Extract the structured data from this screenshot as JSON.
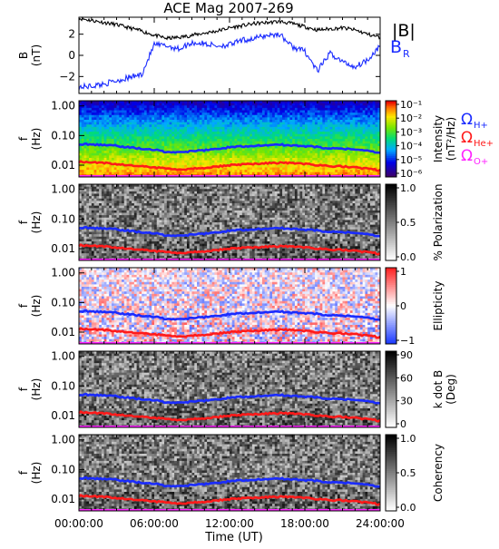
{
  "title": "ACE Mag 2007-269",
  "x_axis": {
    "label": "Time (UT)",
    "tick_labels": [
      "00:00:00",
      "06:00:00",
      "12:00:00",
      "18:00:00",
      "24:00:00"
    ],
    "range_hours": [
      0,
      24
    ]
  },
  "legend_top": {
    "b_mag": "|B|",
    "b_r": "B",
    "b_r_sub": "R"
  },
  "legend_gyro": [
    {
      "sym": "Ω",
      "sub": "H+",
      "color": "#1a2bff"
    },
    {
      "sym": "Ω",
      "sub": "He+",
      "color": "#ff1a1a"
    },
    {
      "sym": "Ω",
      "sub": "O+",
      "color": "#ff22ff"
    }
  ],
  "colors": {
    "b_mag": "#000000",
    "b_r": "#1a2bff",
    "h_plus": "#1a2bff",
    "he_plus": "#ff1a1a",
    "o_plus": "#ff22ff"
  },
  "panels": [
    {
      "id": "b",
      "ylabel": "B",
      "yunit": "(nT)",
      "tick_labels": [
        "2",
        "0",
        "−2"
      ],
      "kind": "line"
    },
    {
      "id": "intensity",
      "ylabel": "f",
      "yunit": "(Hz)",
      "tick_labels": [
        "1.00",
        "0.10",
        "0.01"
      ],
      "kind": "spectrogram",
      "colormap": "rainbow",
      "cbar_title": "Intensity",
      "cbar_unit": "(nT²/Hz)",
      "cbar_ticks": [
        "10⁻¹",
        "10⁻²",
        "10⁻³",
        "10⁻⁴",
        "10⁻⁵",
        "10⁻⁶"
      ]
    },
    {
      "id": "polarization",
      "ylabel": "f",
      "yunit": "(Hz)",
      "tick_labels": [
        "1.00",
        "0.10",
        "0.01"
      ],
      "kind": "spectrogram",
      "colormap": "gray",
      "cbar_title": "% Polarization",
      "cbar_unit": "",
      "cbar_ticks": [
        "1.0",
        "0.5",
        "0.0"
      ]
    },
    {
      "id": "ellipticity",
      "ylabel": "f",
      "yunit": "(Hz)",
      "tick_labels": [
        "1.00",
        "0.10",
        "0.01"
      ],
      "kind": "spectrogram",
      "colormap": "bwr",
      "cbar_title": "Ellipticity",
      "cbar_unit": "",
      "cbar_ticks": [
        "1",
        "0",
        "−1"
      ]
    },
    {
      "id": "kdotb",
      "ylabel": "f",
      "yunit": "(Hz)",
      "tick_labels": [
        "1.00",
        "0.10",
        "0.01"
      ],
      "kind": "spectrogram",
      "colormap": "gray",
      "cbar_title": "k dot B",
      "cbar_unit": "(Deg)",
      "cbar_ticks": [
        "90",
        "60",
        "30",
        "0"
      ]
    },
    {
      "id": "coherency",
      "ylabel": "f",
      "yunit": "(Hz)",
      "tick_labels": [
        "1.00",
        "0.10",
        "0.01"
      ],
      "kind": "spectrogram",
      "colormap": "gray",
      "cbar_title": "Coherency",
      "cbar_unit": "",
      "cbar_ticks": [
        "1.0",
        "0.5",
        "0.0"
      ]
    }
  ],
  "chart_data": {
    "type": "line",
    "title": "ACE Mag 2007-269",
    "xlabel": "Time (UT)",
    "x_hours": [
      0,
      1,
      2,
      3,
      4,
      5,
      6,
      7,
      8,
      9,
      10,
      11,
      12,
      13,
      14,
      15,
      16,
      17,
      18,
      19,
      20,
      21,
      22,
      23,
      24
    ],
    "b_panel": {
      "ylabel": "B (nT)",
      "ylim": [
        -3.6,
        3.6
      ],
      "series": [
        {
          "name": "|B|",
          "values": [
            3.5,
            3.3,
            3.1,
            2.9,
            2.6,
            2.3,
            1.9,
            1.6,
            1.7,
            1.9,
            2.1,
            2.3,
            2.6,
            2.8,
            3.0,
            3.1,
            3.2,
            3.0,
            2.7,
            2.4,
            2.5,
            2.6,
            2.4,
            2.0,
            1.7
          ]
        },
        {
          "name": "B_R",
          "values": [
            -3.0,
            -2.9,
            -2.7,
            -2.4,
            -2.1,
            -1.8,
            1.0,
            0.9,
            0.6,
            1.2,
            1.1,
            0.9,
            1.0,
            1.4,
            1.6,
            1.9,
            2.0,
            0.8,
            0.4,
            -1.5,
            0.2,
            -0.6,
            -1.1,
            -0.4,
            0.9
          ]
        }
      ]
    },
    "gyrofrequency_hz": {
      "series": [
        {
          "name": "Ω_H+",
          "values": [
            0.052,
            0.05,
            0.047,
            0.045,
            0.04,
            0.036,
            0.033,
            0.028,
            0.027,
            0.03,
            0.032,
            0.036,
            0.04,
            0.043,
            0.045,
            0.047,
            0.049,
            0.047,
            0.044,
            0.041,
            0.037,
            0.036,
            0.034,
            0.03,
            0.026
          ]
        },
        {
          "name": "Ω_He+",
          "values": [
            0.013,
            0.0125,
            0.012,
            0.011,
            0.01,
            0.009,
            0.0085,
            0.0075,
            0.0068,
            0.0075,
            0.008,
            0.009,
            0.01,
            0.0105,
            0.011,
            0.0115,
            0.012,
            0.0117,
            0.011,
            0.01,
            0.0093,
            0.009,
            0.0085,
            0.0075,
            0.0067
          ]
        },
        {
          "name": "Ω_O+",
          "values": [
            0.0033,
            0.0032,
            0.003,
            0.0028,
            0.0026,
            0.0023,
            0.0021,
            0.0019,
            0.0017,
            0.0019,
            0.002,
            0.0023,
            0.0025,
            0.0026,
            0.0028,
            0.0029,
            0.003,
            0.0029,
            0.0028,
            0.0026,
            0.0024,
            0.0023,
            0.0021,
            0.0019,
            0.0017
          ]
        }
      ]
    },
    "freq_ylim_hz": [
      0.004,
      1.5
    ],
    "grid": false
  }
}
